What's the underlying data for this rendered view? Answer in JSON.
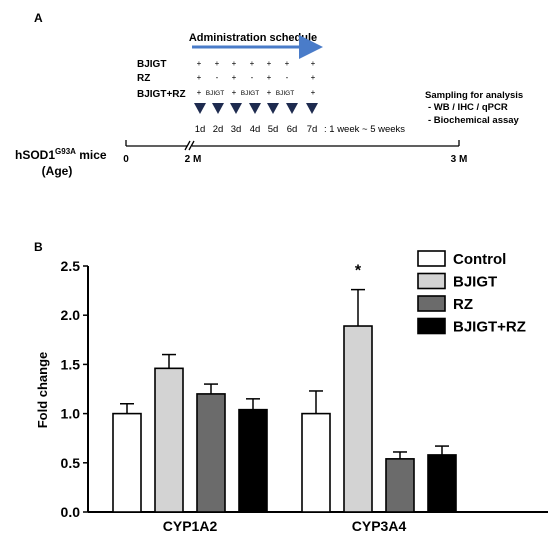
{
  "panel_a": {
    "label": "A",
    "schedule_title": "Administration schedule",
    "groups": [
      {
        "name": "BJIGT",
        "marks": [
          "+",
          "+",
          "+",
          "+",
          "+",
          "+",
          "+"
        ],
        "notes": []
      },
      {
        "name": "RZ",
        "marks": [
          "+",
          "-",
          "+",
          "-",
          "+",
          "-",
          "+"
        ],
        "notes": []
      },
      {
        "name": "BJIGT+RZ",
        "marks": [
          "+",
          "",
          "+",
          "",
          "+",
          "",
          "+"
        ],
        "notes": [
          "BJIGT",
          "BJIGT",
          "BJIGT"
        ]
      }
    ],
    "days": [
      "1d",
      "2d",
      "3d",
      "4d",
      "5d",
      "6d",
      "7d"
    ],
    "duration": ": 1 week ~ 5 weeks",
    "sampling_title": "Sampling for analysis",
    "sampling_items": [
      "- WB / IHC / qPCR",
      "- Biochemical assay"
    ],
    "mice_label_main": "hSOD1",
    "mice_label_sup": "G93A",
    "mice_label_rest": " mice",
    "age_label": "(Age)",
    "timeline_ticks": [
      "0",
      "2 M",
      "3 M"
    ],
    "colors": {
      "arrow": "#4a7cc9",
      "triangle": "#1e2b4f"
    }
  },
  "panel_b_label": "B",
  "chart_data": {
    "type": "bar",
    "categories": [
      "CYP1A2",
      "CYP3A4"
    ],
    "series": [
      {
        "name": "Control",
        "values": [
          1.0,
          1.0
        ],
        "errors": [
          0.1,
          0.23
        ],
        "color": "#ffffff"
      },
      {
        "name": "BJIGT",
        "values": [
          1.46,
          1.89
        ],
        "errors": [
          0.14,
          0.37
        ],
        "color": "#d3d3d3"
      },
      {
        "name": "RZ",
        "values": [
          1.2,
          0.54
        ],
        "errors": [
          0.1,
          0.07
        ],
        "color": "#6b6b6b"
      },
      {
        "name": "BJIGT+RZ",
        "values": [
          1.04,
          0.58
        ],
        "errors": [
          0.11,
          0.09
        ],
        "color": "#000000"
      }
    ],
    "ylabel": "Fold change",
    "ylim": [
      0,
      2.5
    ],
    "yticks": [
      "0.0",
      "0.5",
      "1.0",
      "1.5",
      "2.0",
      "2.5"
    ],
    "annotations": [
      {
        "category": "CYP3A4",
        "series": "BJIGT",
        "text": "*"
      }
    ],
    "legend_position": "top-right",
    "grid": false
  }
}
